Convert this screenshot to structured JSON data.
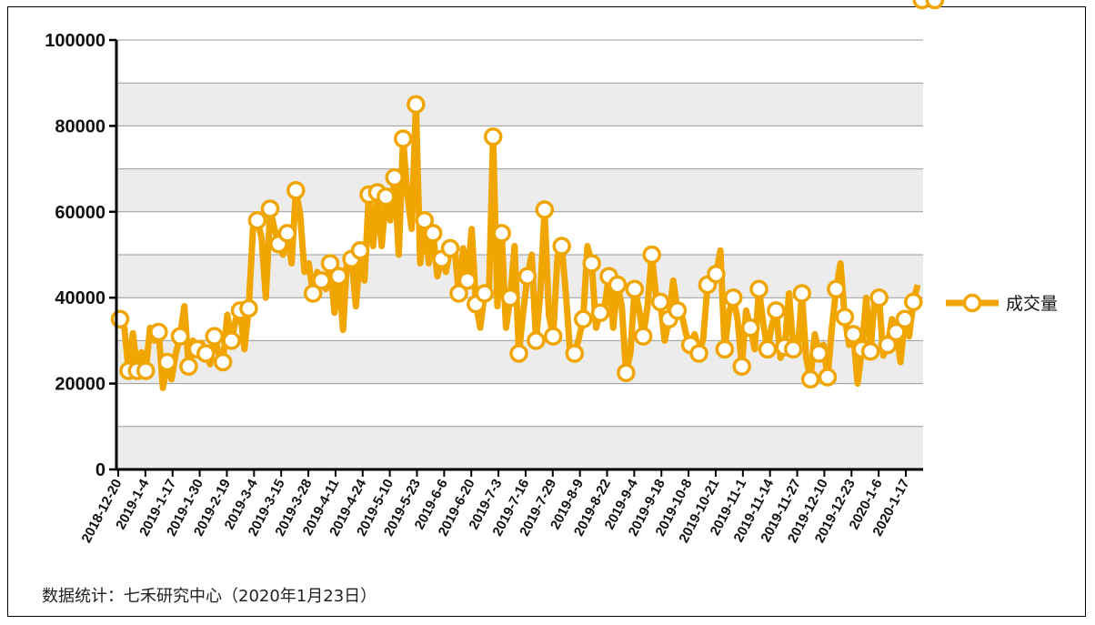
{
  "chart_data": {
    "type": "line",
    "series": [
      {
        "name": "成交量",
        "color": "#f0a500",
        "values": [
          35000,
          33000,
          23000,
          31700,
          23000,
          27300,
          23000,
          33000,
          30000,
          32000,
          19000,
          25000,
          21000,
          27000,
          31000,
          38000,
          24000,
          30000,
          28000,
          29500,
          27000,
          24500,
          31000,
          27000,
          25000,
          36000,
          30000,
          35000,
          37000,
          28000,
          37500,
          56000,
          58000,
          54000,
          40000,
          60700,
          56000,
          52500,
          50000,
          55000,
          48000,
          65000,
          59500,
          46000,
          48000,
          41000,
          46000,
          44000,
          42000,
          48000,
          36500,
          45000,
          32500,
          50000,
          49000,
          38000,
          51000,
          44000,
          64000,
          52000,
          64500,
          52000,
          63500,
          58000,
          68000,
          50000,
          77000,
          64000,
          56000,
          85000,
          48000,
          58000,
          48000,
          55000,
          45000,
          49000,
          46000,
          51500,
          51500,
          41000,
          51500,
          44000,
          56000,
          38500,
          33000,
          41000,
          40000,
          77500,
          38000,
          55000,
          33000,
          40000,
          52000,
          27000,
          36500,
          45000,
          50000,
          30000,
          41000,
          60500,
          36000,
          31000,
          49500,
          52000,
          40500,
          26500,
          27000,
          30500,
          35000,
          52000,
          48000,
          33000,
          36500,
          38000,
          45000,
          33000,
          43000,
          38000,
          22500,
          27000,
          42000,
          37500,
          31000,
          38000,
          50000,
          40500,
          39000,
          30000,
          35000,
          44000,
          37000,
          36000,
          31500,
          29000,
          31500,
          27000,
          30500,
          43000,
          43500,
          45500,
          51000,
          28000,
          36500,
          40000,
          35000,
          24000,
          37000,
          33000,
          28000,
          42000,
          34000,
          28000,
          33500,
          37000,
          26000,
          28500,
          41000,
          28000,
          27000,
          41000,
          26000,
          21000,
          31500,
          27000,
          29000,
          21500,
          33000,
          42000,
          48000,
          35500,
          29000,
          31500,
          20000,
          28000,
          40000,
          27500,
          40000,
          40000,
          26500,
          29000,
          35000,
          32000,
          25000,
          35000,
          31000,
          39000,
          43000
        ],
        "marker_indices": [
          0,
          2,
          4,
          6,
          9,
          11,
          14,
          16,
          18,
          20,
          22,
          24,
          26,
          28,
          30,
          32,
          35,
          37,
          39,
          41,
          45,
          47,
          49,
          51,
          54,
          56,
          58,
          60,
          62,
          64,
          66,
          69,
          71,
          73,
          75,
          77,
          79,
          81,
          83,
          85,
          87,
          89,
          91,
          93,
          95,
          97,
          99,
          101,
          103,
          106,
          108,
          110,
          112,
          114,
          116,
          118,
          120,
          122,
          124,
          126,
          128,
          130,
          133,
          135,
          137,
          139,
          141,
          143,
          145,
          147,
          149,
          151,
          153,
          155,
          157,
          159,
          161,
          163,
          165,
          167,
          169,
          171,
          173,
          175,
          177,
          179,
          181,
          183,
          185,
          187,
          190
        ]
      }
    ],
    "x_tick_labels": [
      "2018-12-20",
      "2019-1-4",
      "2019-1-17",
      "2019-1-30",
      "2019-2-19",
      "2019-3-4",
      "2019-3-15",
      "2019-3-28",
      "2019-4-11",
      "2019-4-24",
      "2019-5-10",
      "2019-5-23",
      "2019-6-6",
      "2019-6-20",
      "2019-7-3",
      "2019-7-16",
      "2019-7-29",
      "2019-8-9",
      "2019-8-22",
      "2019-9-4",
      "2019-9-18",
      "2019-10-8",
      "2019-10-21",
      "2019-11-1",
      "2019-11-14",
      "2019-11-27",
      "2019-12-10",
      "2019-12-23",
      "2020-1-6",
      "2020-1-17"
    ],
    "y_ticks": [
      "0",
      "20000",
      "40000",
      "60000",
      "80000",
      "100000"
    ],
    "ylim": [
      0,
      100000
    ],
    "grid": true,
    "legend_position": "right",
    "band_colors": [
      "#ececec",
      "#ffffff"
    ],
    "title": "",
    "xlabel": "",
    "ylabel": ""
  },
  "footer": {
    "source": "数据统计：七禾研究中心（2020年1月23日）"
  }
}
